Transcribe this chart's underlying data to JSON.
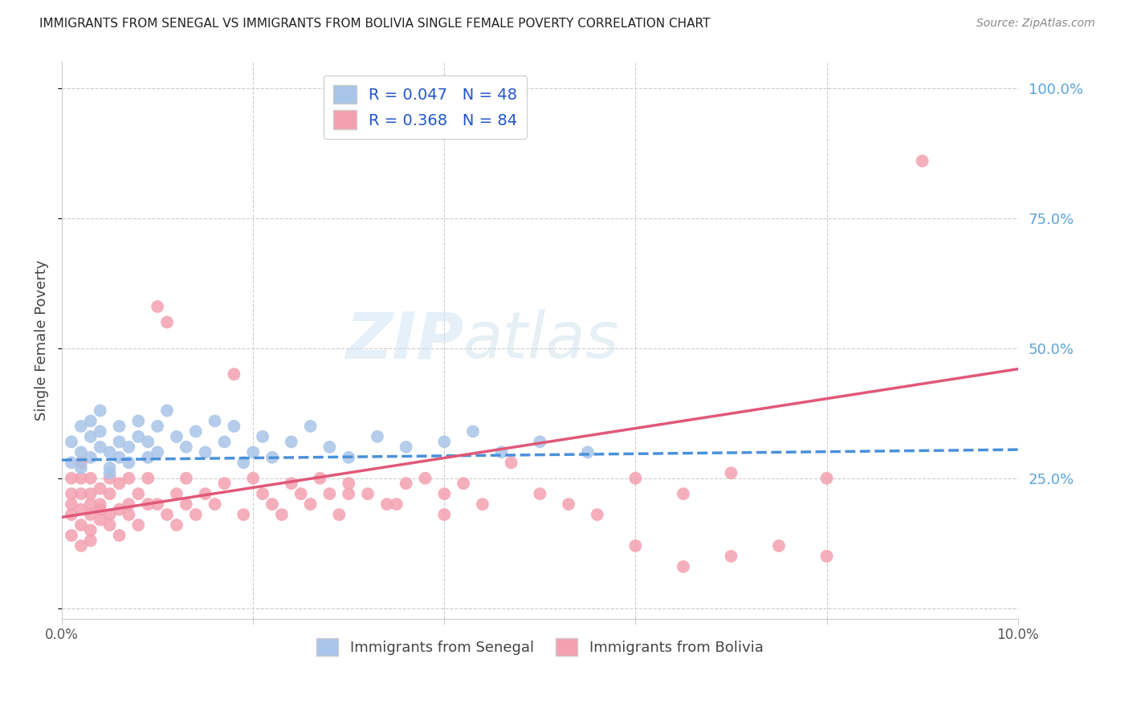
{
  "title": "IMMIGRANTS FROM SENEGAL VS IMMIGRANTS FROM BOLIVIA SINGLE FEMALE POVERTY CORRELATION CHART",
  "source": "Source: ZipAtlas.com",
  "ylabel": "Single Female Poverty",
  "xlim": [
    0.0,
    0.1
  ],
  "ylim": [
    -0.02,
    1.05
  ],
  "yticks": [
    0.0,
    0.25,
    0.5,
    0.75,
    1.0
  ],
  "right_ytick_labels": [
    "",
    "25.0%",
    "50.0%",
    "75.0%",
    "100.0%"
  ],
  "xticks": [
    0.0,
    0.02,
    0.04,
    0.06,
    0.08,
    0.1
  ],
  "xtick_labels": [
    "0.0%",
    "",
    "",
    "",
    "",
    "10.0%"
  ],
  "senegal_R": 0.047,
  "senegal_N": 48,
  "bolivia_R": 0.368,
  "bolivia_N": 84,
  "senegal_color": "#a8c4e8",
  "bolivia_color": "#f4a0b0",
  "senegal_line_color": "#4a90d9",
  "bolivia_line_color": "#e05878",
  "grid_color": "#cccccc",
  "background_color": "#ffffff",
  "senegal_x": [
    0.001,
    0.001,
    0.002,
    0.002,
    0.002,
    0.003,
    0.003,
    0.003,
    0.004,
    0.004,
    0.004,
    0.005,
    0.005,
    0.005,
    0.006,
    0.006,
    0.006,
    0.007,
    0.007,
    0.008,
    0.008,
    0.009,
    0.009,
    0.01,
    0.01,
    0.011,
    0.012,
    0.013,
    0.014,
    0.015,
    0.016,
    0.017,
    0.018,
    0.019,
    0.02,
    0.021,
    0.022,
    0.024,
    0.026,
    0.028,
    0.03,
    0.033,
    0.036,
    0.04,
    0.043,
    0.046,
    0.05,
    0.055
  ],
  "senegal_y": [
    0.28,
    0.32,
    0.27,
    0.3,
    0.35,
    0.29,
    0.33,
    0.36,
    0.31,
    0.34,
    0.38,
    0.27,
    0.3,
    0.26,
    0.32,
    0.35,
    0.29,
    0.28,
    0.31,
    0.33,
    0.36,
    0.29,
    0.32,
    0.3,
    0.35,
    0.38,
    0.33,
    0.31,
    0.34,
    0.3,
    0.36,
    0.32,
    0.35,
    0.28,
    0.3,
    0.33,
    0.29,
    0.32,
    0.35,
    0.31,
    0.29,
    0.33,
    0.31,
    0.32,
    0.34,
    0.3,
    0.32,
    0.3
  ],
  "bolivia_x": [
    0.001,
    0.001,
    0.001,
    0.001,
    0.001,
    0.002,
    0.002,
    0.002,
    0.002,
    0.002,
    0.002,
    0.003,
    0.003,
    0.003,
    0.003,
    0.003,
    0.003,
    0.004,
    0.004,
    0.004,
    0.004,
    0.005,
    0.005,
    0.005,
    0.005,
    0.006,
    0.006,
    0.006,
    0.007,
    0.007,
    0.007,
    0.008,
    0.008,
    0.009,
    0.009,
    0.01,
    0.01,
    0.011,
    0.011,
    0.012,
    0.012,
    0.013,
    0.013,
    0.014,
    0.015,
    0.016,
    0.017,
    0.018,
    0.019,
    0.02,
    0.021,
    0.022,
    0.023,
    0.024,
    0.025,
    0.026,
    0.027,
    0.028,
    0.029,
    0.03,
    0.032,
    0.034,
    0.036,
    0.038,
    0.04,
    0.042,
    0.044,
    0.047,
    0.05,
    0.053,
    0.056,
    0.06,
    0.065,
    0.07,
    0.075,
    0.08,
    0.06,
    0.065,
    0.07,
    0.08,
    0.03,
    0.035,
    0.04,
    0.09
  ],
  "bolivia_y": [
    0.22,
    0.18,
    0.25,
    0.14,
    0.2,
    0.16,
    0.22,
    0.19,
    0.25,
    0.12,
    0.28,
    0.18,
    0.22,
    0.15,
    0.2,
    0.25,
    0.13,
    0.2,
    0.17,
    0.23,
    0.19,
    0.16,
    0.22,
    0.18,
    0.25,
    0.19,
    0.24,
    0.14,
    0.2,
    0.25,
    0.18,
    0.22,
    0.16,
    0.2,
    0.25,
    0.58,
    0.2,
    0.55,
    0.18,
    0.22,
    0.16,
    0.2,
    0.25,
    0.18,
    0.22,
    0.2,
    0.24,
    0.45,
    0.18,
    0.25,
    0.22,
    0.2,
    0.18,
    0.24,
    0.22,
    0.2,
    0.25,
    0.22,
    0.18,
    0.24,
    0.22,
    0.2,
    0.24,
    0.25,
    0.22,
    0.24,
    0.2,
    0.28,
    0.22,
    0.2,
    0.18,
    0.12,
    0.08,
    0.1,
    0.12,
    0.1,
    0.25,
    0.22,
    0.26,
    0.25,
    0.22,
    0.2,
    0.18,
    0.86
  ]
}
